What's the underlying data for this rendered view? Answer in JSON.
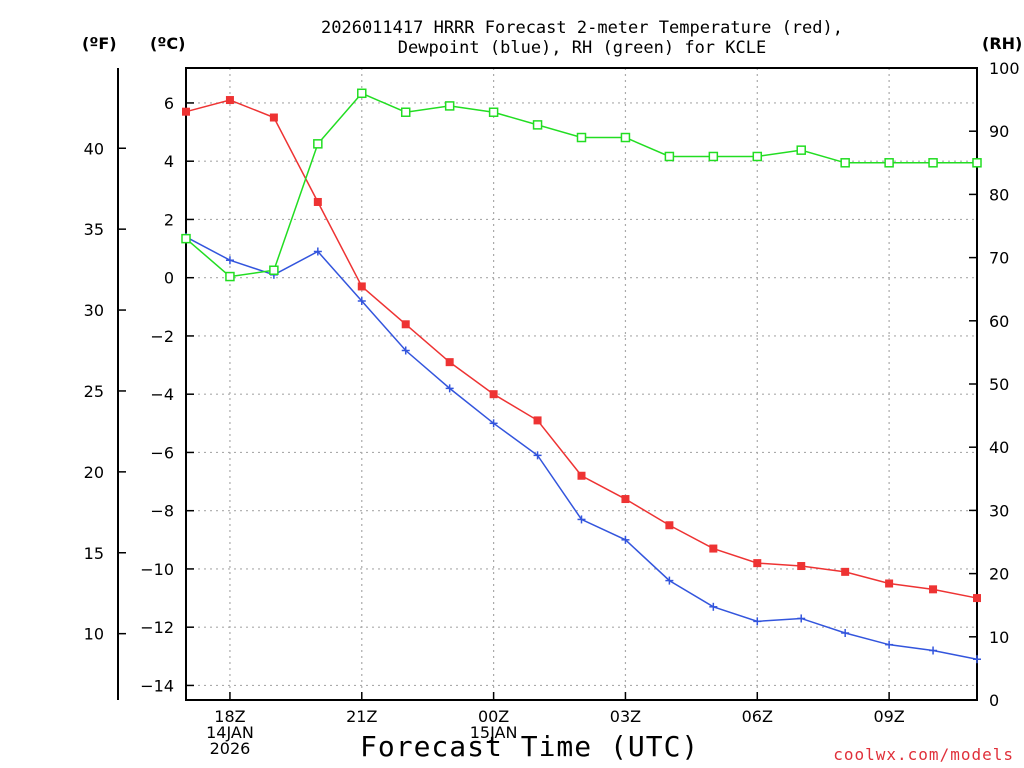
{
  "chart_data": {
    "type": "line",
    "title_line1": "2026011417 HRRR Forecast 2-meter Temperature (red),",
    "title_line2": "Dewpoint (blue), RH (green) for KCLE",
    "xlabel": "Forecast Time (UTC)",
    "credit": "coolwx.com/models",
    "unit_left_f": "(ºF)",
    "unit_left_c": "(ºC)",
    "unit_right": "(RH)",
    "x_hours": [
      17,
      18,
      19,
      20,
      21,
      22,
      23,
      24,
      25,
      26,
      27,
      28,
      29,
      30,
      31,
      32,
      33,
      34,
      35
    ],
    "xlim": [
      17,
      35
    ],
    "x_ticks": [
      {
        "hour": 18,
        "lines": [
          "18Z",
          "14JAN",
          "2026"
        ]
      },
      {
        "hour": 21,
        "lines": [
          "21Z"
        ]
      },
      {
        "hour": 24,
        "lines": [
          "00Z",
          "15JAN"
        ]
      },
      {
        "hour": 27,
        "lines": [
          "03Z"
        ]
      },
      {
        "hour": 30,
        "lines": [
          "06Z"
        ]
      },
      {
        "hour": 33,
        "lines": [
          "09Z"
        ]
      }
    ],
    "ylim_c": [
      -14.5,
      7.2
    ],
    "y_ticks_c": [
      6,
      4,
      2,
      0,
      -2,
      -4,
      -6,
      -8,
      -10,
      -12,
      -14
    ],
    "y_tick_labels_c": [
      "6",
      "4",
      "2",
      "0",
      "−2",
      "−4",
      "−6",
      "−8",
      "−10",
      "−12",
      "−14"
    ],
    "y_ticks_f": [
      40,
      35,
      30,
      25,
      20,
      15,
      10
    ],
    "ylim_rh": [
      0,
      100
    ],
    "y_ticks_rh": [
      0,
      10,
      20,
      30,
      40,
      50,
      60,
      70,
      80,
      90,
      100
    ],
    "series": [
      {
        "name": "Temperature",
        "axis": "c",
        "color": "#ee3333",
        "marker": "filled-square",
        "values": [
          5.7,
          6.1,
          5.5,
          2.6,
          -0.3,
          -1.6,
          -2.9,
          -4.0,
          -4.9,
          -6.8,
          -7.6,
          -8.5,
          -9.3,
          -9.8,
          -9.9,
          -10.1,
          -10.5,
          -10.7,
          -11.0
        ]
      },
      {
        "name": "Dewpoint",
        "axis": "c",
        "color": "#3355dd",
        "marker": "plus",
        "values": [
          1.4,
          0.6,
          0.1,
          0.9,
          -0.8,
          -2.5,
          -3.8,
          -5.0,
          -6.1,
          -8.3,
          -9.0,
          -10.4,
          -11.3,
          -11.8,
          -11.7,
          -12.2,
          -12.6,
          -12.8,
          -13.1
        ]
      },
      {
        "name": "RH",
        "axis": "rh",
        "color": "#22dd22",
        "marker": "open-square",
        "values": [
          73,
          67,
          68,
          88,
          96,
          93,
          94,
          93,
          91,
          89,
          89,
          86,
          86,
          86,
          87,
          85,
          85,
          85,
          85
        ]
      }
    ]
  }
}
